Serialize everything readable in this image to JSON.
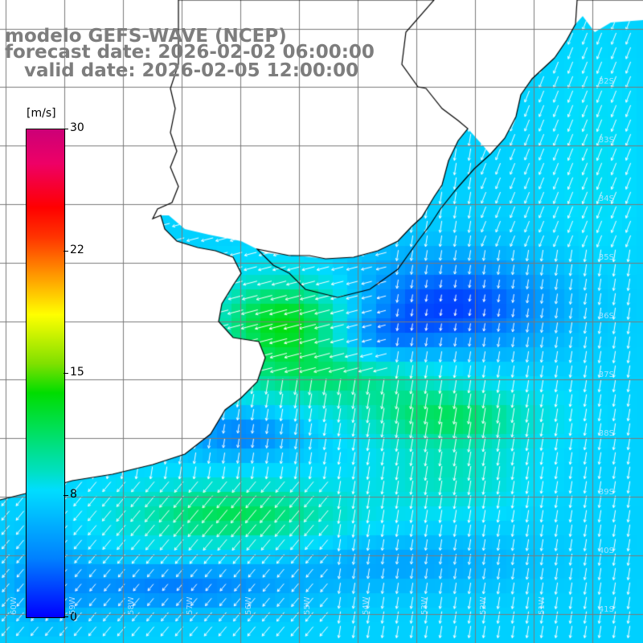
{
  "title": {
    "line1": "modelo GEFS-WAVE (NCEP)",
    "line2": "forecast date: 2026-02-02 06:00:00",
    "line3": "   valid date: 2026-02-05 12:00:00"
  },
  "colorbar": {
    "unit": "[m/s]",
    "min": 0,
    "max": 30,
    "ticks": [
      "0",
      "8",
      "15",
      "22",
      "30"
    ]
  },
  "map": {
    "field": "wind speed",
    "unit": "m/s",
    "lat_labels": [
      "32S",
      "33S",
      "34S",
      "35S",
      "36S",
      "37S",
      "38S",
      "39S",
      "40S",
      "41S"
    ],
    "lon_labels": [
      "60W",
      "59W",
      "58W",
      "57W",
      "56W",
      "55W",
      "54W",
      "53W",
      "52W",
      "51W"
    ],
    "colors": {
      "land": "#ffffff",
      "coast": "#000000",
      "grid": "#7a7a7a",
      "arrow": "#ffffff"
    }
  }
}
